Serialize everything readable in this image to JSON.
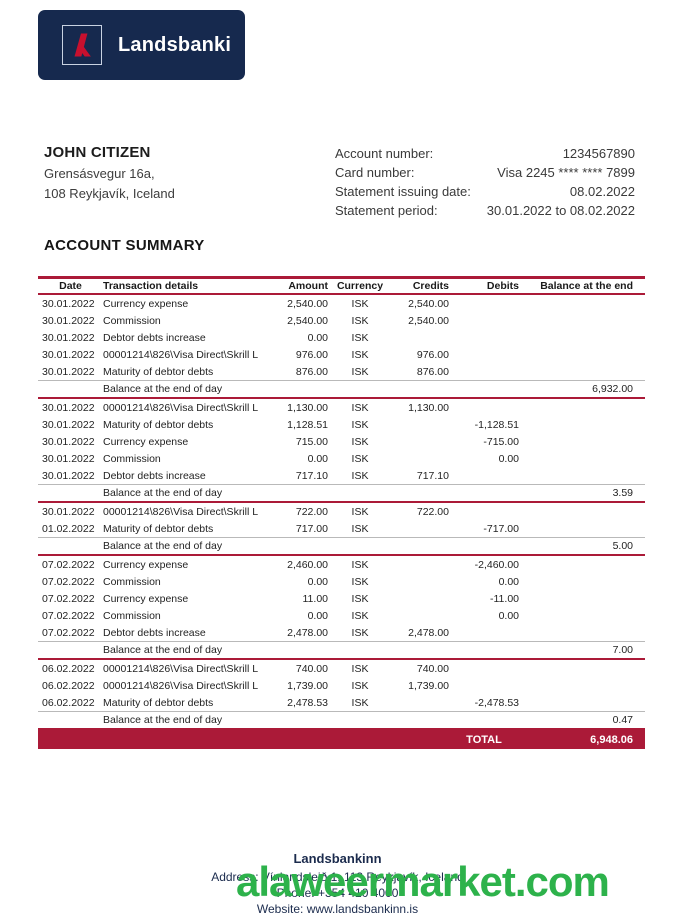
{
  "logo": {
    "brand": "Landsbanki"
  },
  "customer": {
    "name": "JOHN CITIZEN",
    "address_line1": "Grensásvegur 16a,",
    "address_line2": "108 Reykjavík, Iceland"
  },
  "account_info": {
    "rows": [
      {
        "label": "Account number:",
        "value": "1234567890"
      },
      {
        "label": "Card number:",
        "value": "Visa 2245 **** **** 7899"
      },
      {
        "label": "Statement issuing date:",
        "value": "08.02.2022"
      },
      {
        "label": "Statement period:",
        "value": "30.01.2022 to 08.02.2022"
      }
    ]
  },
  "summary": {
    "title": "ACCOUNT SUMMARY",
    "columns": [
      "Date",
      "Transaction details",
      "Amount",
      "Currency",
      "Credits",
      "Debits",
      "Balance at the end"
    ],
    "balance_label": "Balance at the end of day",
    "sections": [
      {
        "rows": [
          {
            "date": "30.01.2022",
            "details": "Currency expense",
            "amount": "2,540.00",
            "currency": "ISK",
            "credits": "2,540.00",
            "debits": ""
          },
          {
            "date": "30.01.2022",
            "details": "Commission",
            "amount": "2,540.00",
            "currency": "ISK",
            "credits": "2,540.00",
            "debits": ""
          },
          {
            "date": "30.01.2022",
            "details": "Debtor debts increase",
            "amount": "0.00",
            "currency": "ISK",
            "credits": "",
            "debits": ""
          },
          {
            "date": "30.01.2022",
            "details": "00001214\\826\\Visa Direct\\Skrill L",
            "amount": "976.00",
            "currency": "ISK",
            "credits": "976.00",
            "debits": ""
          },
          {
            "date": "30.01.2022",
            "details": "Maturity of debtor debts",
            "amount": "876.00",
            "currency": "ISK",
            "credits": "876.00",
            "debits": ""
          }
        ],
        "balance": "6,932.00"
      },
      {
        "rows": [
          {
            "date": "30.01.2022",
            "details": "00001214\\826\\Visa Direct\\Skrill L",
            "amount": "1,130.00",
            "currency": "ISK",
            "credits": "1,130.00",
            "debits": ""
          },
          {
            "date": "30.01.2022",
            "details": "Maturity of debtor debts",
            "amount": "1,128.51",
            "currency": "ISK",
            "credits": "",
            "debits": "-1,128.51"
          },
          {
            "date": "30.01.2022",
            "details": "Currency expense",
            "amount": "715.00",
            "currency": "ISK",
            "credits": "",
            "debits": "-715.00"
          },
          {
            "date": "30.01.2022",
            "details": "Commission",
            "amount": "0.00",
            "currency": "ISK",
            "credits": "",
            "debits": "0.00"
          },
          {
            "date": "30.01.2022",
            "details": "Debtor debts increase",
            "amount": "717.10",
            "currency": "ISK",
            "credits": "717.10",
            "debits": ""
          }
        ],
        "balance": "3.59"
      },
      {
        "rows": [
          {
            "date": "30.01.2022",
            "details": "00001214\\826\\Visa Direct\\Skrill L",
            "amount": "722.00",
            "currency": "ISK",
            "credits": "722.00",
            "debits": ""
          },
          {
            "date": "01.02.2022",
            "details": "Maturity of debtor debts",
            "amount": "717.00",
            "currency": "ISK",
            "credits": "",
            "debits": "-717.00"
          }
        ],
        "balance": "5.00"
      },
      {
        "rows": [
          {
            "date": "07.02.2022",
            "details": "Currency expense",
            "amount": "2,460.00",
            "currency": "ISK",
            "credits": "",
            "debits": "-2,460.00"
          },
          {
            "date": "07.02.2022",
            "details": "Commission",
            "amount": "0.00",
            "currency": "ISK",
            "credits": "",
            "debits": "0.00"
          },
          {
            "date": "07.02.2022",
            "details": "Currency expense",
            "amount": "11.00",
            "currency": "ISK",
            "credits": "",
            "debits": "-11.00"
          },
          {
            "date": "07.02.2022",
            "details": "Commission",
            "amount": "0.00",
            "currency": "ISK",
            "credits": "",
            "debits": "0.00"
          },
          {
            "date": "07.02.2022",
            "details": "Debtor debts increase",
            "amount": "2,478.00",
            "currency": "ISK",
            "credits": "2,478.00",
            "debits": ""
          }
        ],
        "balance": "7.00"
      },
      {
        "rows": [
          {
            "date": "06.02.2022",
            "details": "00001214\\826\\Visa Direct\\Skrill L",
            "amount": "740.00",
            "currency": "ISK",
            "credits": "740.00",
            "debits": ""
          },
          {
            "date": "06.02.2022",
            "details": "00001214\\826\\Visa Direct\\Skrill L",
            "amount": "1,739.00",
            "currency": "ISK",
            "credits": "1,739.00",
            "debits": ""
          },
          {
            "date": "06.02.2022",
            "details": "Maturity of debtor debts",
            "amount": "2,478.53",
            "currency": "ISK",
            "credits": "",
            "debits": "-2,478.53"
          }
        ],
        "balance": "0.47"
      }
    ],
    "total_label": "TOTAL",
    "total_value": "6,948.06"
  },
  "footer": {
    "name": "Landsbankinn",
    "address": "Address: Vínlandsleið 1, 113 Reykjavík, Iceland",
    "phone": "Phone: +354 410 4000",
    "website": "Website: www.landsbankinn.is"
  },
  "watermark": "alaweermarket.com",
  "colors": {
    "accent_red": "#AB1A38",
    "navy": "#16294E",
    "logo_red": "#C8102E",
    "watermark_green": "#2DB24B"
  }
}
